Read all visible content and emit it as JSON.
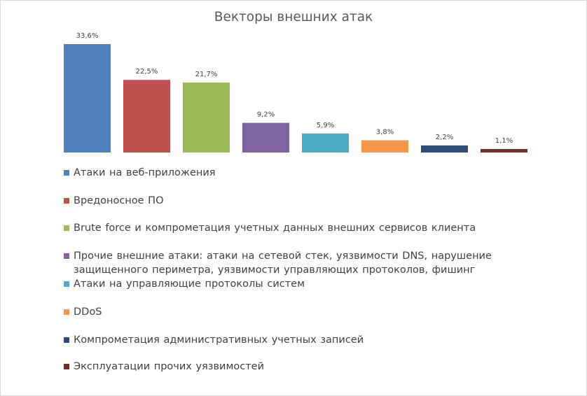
{
  "chart_data": {
    "type": "bar",
    "title": "Векторы внешних атак",
    "categories": [
      "Атаки на веб-приложения",
      "Вредоносное  ПО",
      "Brute force и компрометация учетных данных  внешних  сервисов клиента",
      "Прочие внешние  атаки: атаки на сетевой стек, уязвимости DNS, нарушение  защищенного периметра, уязвимости управляющих протоколов, фишинг",
      "Атаки на управляющие протоколы систем",
      "DDoS",
      "Компрометация административных  учетных записей",
      "Эксплуатации  прочих уязвимостей"
    ],
    "values": [
      33.6,
      22.5,
      21.7,
      9.2,
      5.9,
      3.8,
      2.2,
      1.1
    ],
    "data_labels": [
      "33,6%",
      "22,5%",
      "21,7%",
      "9,2%",
      "5,9%",
      "3,8%",
      "2,2%",
      "1,1%"
    ],
    "colors": [
      "#4f81bd",
      "#c0504d",
      "#9bbb59",
      "#8064a2",
      "#4bacc6",
      "#f79646",
      "#2c4d75",
      "#772c2a"
    ],
    "xlabel": "",
    "ylabel": "",
    "grid": false,
    "legend_position": "bottom"
  }
}
